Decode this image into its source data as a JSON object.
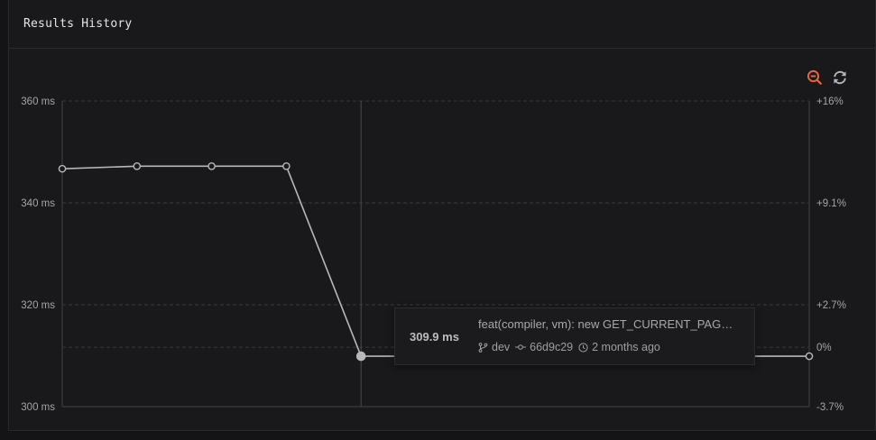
{
  "panel": {
    "title": "Results History"
  },
  "toolbar": {
    "zoom_out_icon": "zoom-out-icon",
    "refresh_icon": "refresh-icon",
    "accent_color": "#e8643c"
  },
  "chart_data": {
    "type": "line",
    "x": [
      1,
      2,
      3,
      4,
      5,
      6,
      7,
      8,
      9,
      10,
      11
    ],
    "values": [
      346.7,
      347.2,
      347.2,
      347.2,
      309.9,
      309.9,
      309.9,
      309.9,
      309.9,
      309.9,
      309.9
    ],
    "ylim": [
      300,
      360
    ],
    "y_ticks": [
      "300 ms",
      "320 ms",
      "340 ms",
      "360 ms"
    ],
    "y_tick_values": [
      300,
      320,
      340,
      360
    ],
    "y2_ticks": [
      "-3.7%",
      "0%",
      "+2.7%",
      "+9.1%",
      "+16%"
    ],
    "y2_tick_values": [
      -3.7,
      0,
      2.7,
      9.1,
      16
    ],
    "baseline": 309.9,
    "highlight_index": 4,
    "grid": true,
    "line_color": "#b8b8b8"
  },
  "tooltip": {
    "value": "309.9 ms",
    "message": "feat(compiler, vm): new GET_CURRENT_PAG…",
    "branch": "dev",
    "commit": "66d9c29",
    "time": "2 months ago"
  }
}
